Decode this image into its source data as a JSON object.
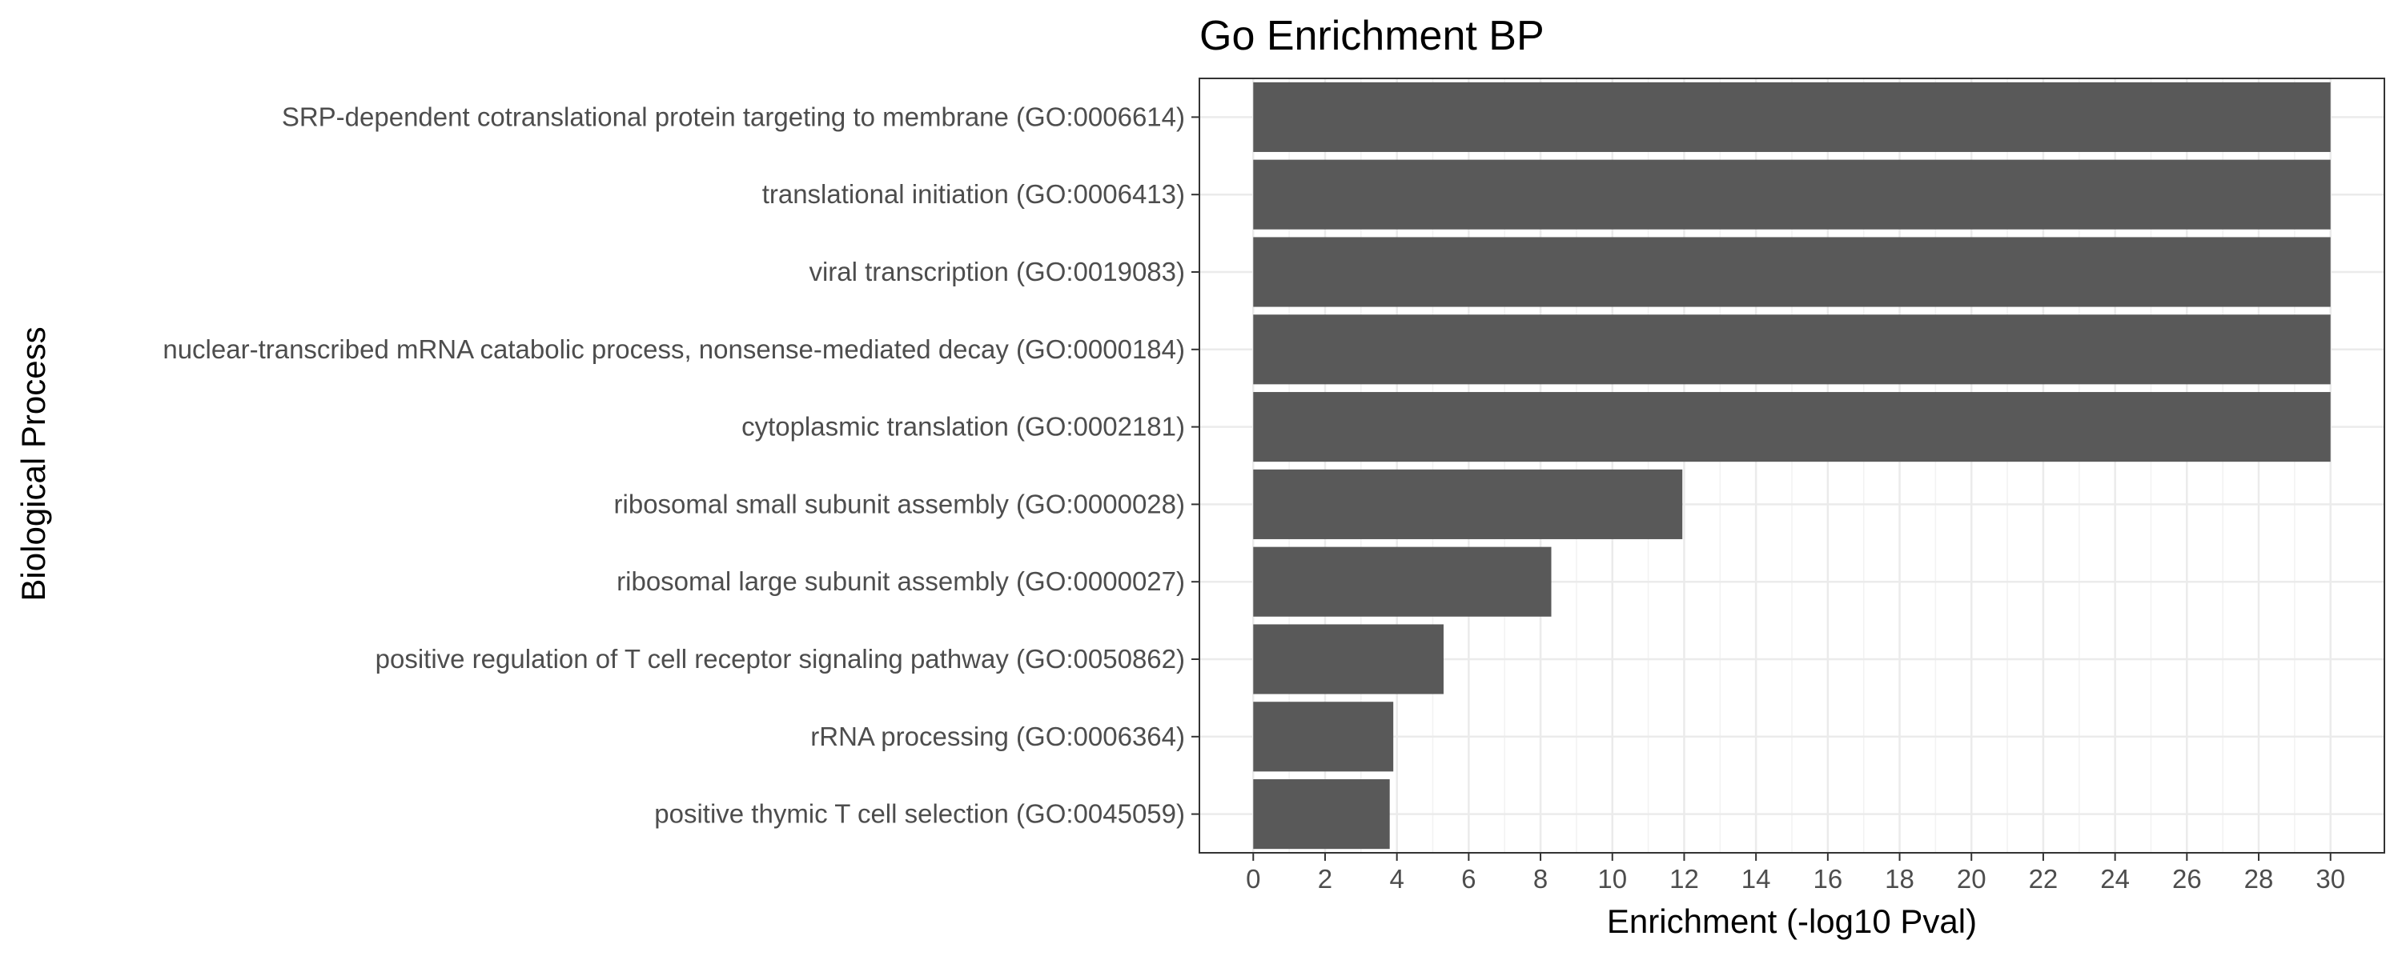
{
  "chart_data": {
    "type": "bar",
    "orientation": "horizontal",
    "title": "Go Enrichment BP",
    "xlabel": "Enrichment (-log10 Pval)",
    "ylabel": "Biological Process",
    "categories": [
      "SRP-dependent cotranslational protein targeting to membrane (GO:0006614)",
      "translational initiation (GO:0006413)",
      "viral transcription (GO:0019083)",
      "nuclear-transcribed mRNA catabolic process, nonsense-mediated decay (GO:0000184)",
      "cytoplasmic translation (GO:0002181)",
      "ribosomal small subunit assembly (GO:0000028)",
      "ribosomal large subunit assembly (GO:0000027)",
      "positive regulation of T cell receptor signaling pathway (GO:0050862)",
      "rRNA processing (GO:0006364)",
      "positive thymic T cell selection (GO:0045059)"
    ],
    "values": [
      30,
      30,
      30,
      30,
      30,
      11.95,
      8.3,
      5.3,
      3.9,
      3.8
    ],
    "xlim": [
      -1.5,
      31.5
    ],
    "xticks": [
      0,
      2,
      4,
      6,
      8,
      10,
      12,
      14,
      16,
      18,
      20,
      22,
      24,
      26,
      28,
      30
    ],
    "grid": true,
    "theme": "bw",
    "bar_color": "#595959",
    "panel_border_color": "#333333",
    "grid_major_color": "#ebebeb",
    "grid_minor_color": "#f2f2f2"
  }
}
